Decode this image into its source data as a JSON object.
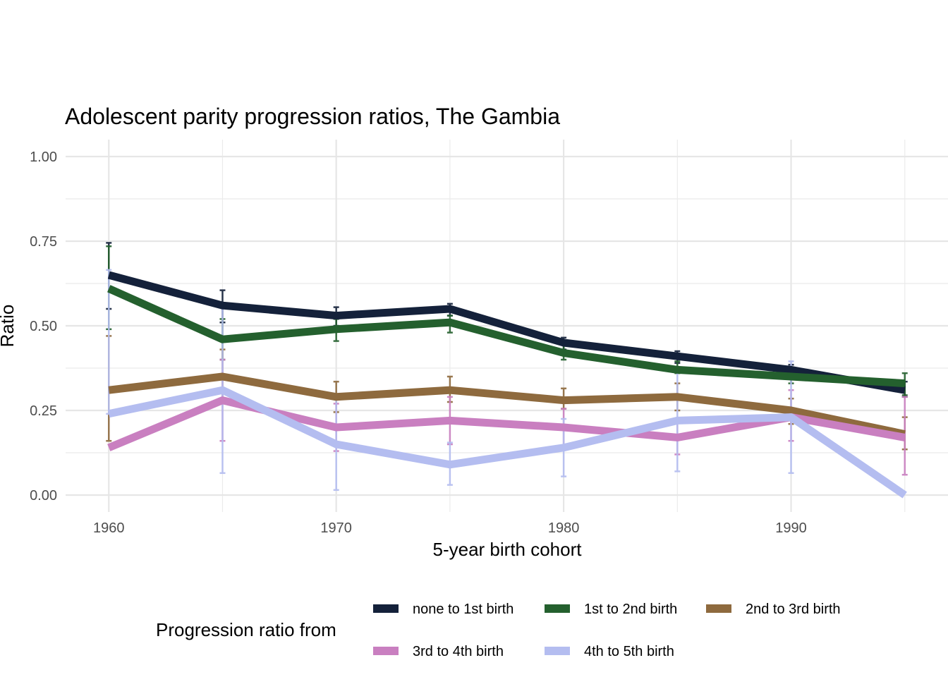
{
  "chart_data": {
    "type": "line",
    "title": "Adolescent parity progression ratios,  The Gambia",
    "xlabel": "5-year birth cohort",
    "ylabel": "Ratio",
    "x": [
      1960,
      1965,
      1970,
      1975,
      1980,
      1985,
      1990,
      1995
    ],
    "xlim": [
      1958.1,
      1996.9
    ],
    "ylim": [
      -0.05,
      1.05
    ],
    "x_ticks": [
      1960,
      1970,
      1980,
      1990
    ],
    "x_tick_labels": [
      "1960",
      "1970",
      "1980",
      "1990"
    ],
    "y_ticks": [
      0,
      0.25,
      0.5,
      0.75,
      1.0
    ],
    "y_tick_labels": [
      "0.00",
      "0.25",
      "0.50",
      "0.75",
      "1.00"
    ],
    "grid": true,
    "legend_title": "Progression ratio from",
    "legend_position": "bottom",
    "series": [
      {
        "name": "none to 1st birth",
        "color": "#14213a",
        "values": [
          0.65,
          0.56,
          0.53,
          0.55,
          0.45,
          0.41,
          0.37,
          0.31
        ],
        "lower": [
          0.55,
          0.51,
          0.5,
          0.53,
          0.43,
          0.39,
          0.35,
          0.29
        ],
        "upper": [
          0.745,
          0.605,
          0.555,
          0.565,
          0.465,
          0.425,
          0.385,
          0.335
        ]
      },
      {
        "name": "1st to 2nd birth",
        "color": "#24602e",
        "values": [
          0.61,
          0.46,
          0.49,
          0.51,
          0.42,
          0.37,
          0.35,
          0.33
        ],
        "lower": [
          0.49,
          0.4,
          0.455,
          0.48,
          0.4,
          0.36,
          0.33,
          0.295
        ],
        "upper": [
          0.735,
          0.52,
          0.52,
          0.53,
          0.455,
          0.395,
          0.37,
          0.36
        ]
      },
      {
        "name": "2nd to 3rd birth",
        "color": "#8e6a3e",
        "values": [
          0.31,
          0.35,
          0.29,
          0.31,
          0.28,
          0.29,
          0.25,
          0.18
        ],
        "lower": [
          0.16,
          0.28,
          0.245,
          0.275,
          0.255,
          0.25,
          0.21,
          0.135
        ],
        "upper": [
          0.47,
          0.43,
          0.335,
          0.35,
          0.315,
          0.33,
          0.285,
          0.23
        ]
      },
      {
        "name": "3rd to 4th birth",
        "color": "#c97fc0",
        "values": [
          0.14,
          0.28,
          0.2,
          0.22,
          0.2,
          0.17,
          0.23,
          0.17
        ],
        "lower": [
          0.14,
          0.16,
          0.13,
          0.15,
          0.145,
          0.12,
          0.16,
          0.06
        ],
        "upper": [
          0.14,
          0.4,
          0.27,
          0.29,
          0.255,
          0.22,
          0.31,
          0.29
        ]
      },
      {
        "name": "4th to 5th birth",
        "color": "#b4bdf0",
        "values": [
          0.24,
          0.31,
          0.15,
          0.09,
          0.14,
          0.22,
          0.23,
          0.0
        ],
        "lower": [
          0.24,
          0.065,
          0.015,
          0.03,
          0.055,
          0.07,
          0.065,
          0.0
        ],
        "upper": [
          0.665,
          0.555,
          0.29,
          0.155,
          0.225,
          0.37,
          0.395,
          0.0
        ]
      }
    ]
  }
}
